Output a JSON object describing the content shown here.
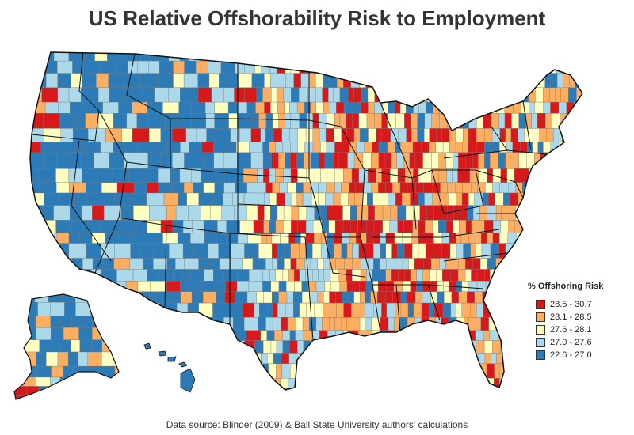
{
  "title": "US Relative Offshorability Risk to Employment",
  "source": "Data source: Blinder (2009) & Ball State University authors' calculations",
  "legend": {
    "title": "% Offshoring Risk",
    "items": [
      {
        "label": "28.5 - 30.7",
        "color": "#d7191c"
      },
      {
        "label": "28.1 - 28.5",
        "color": "#fdae61"
      },
      {
        "label": "27.6 - 28.1",
        "color": "#ffffbf"
      },
      {
        "label": "27.0 - 27.6",
        "color": "#abd9e9"
      },
      {
        "label": "22.6 - 27.0",
        "color": "#2c7bb6"
      }
    ]
  }
}
